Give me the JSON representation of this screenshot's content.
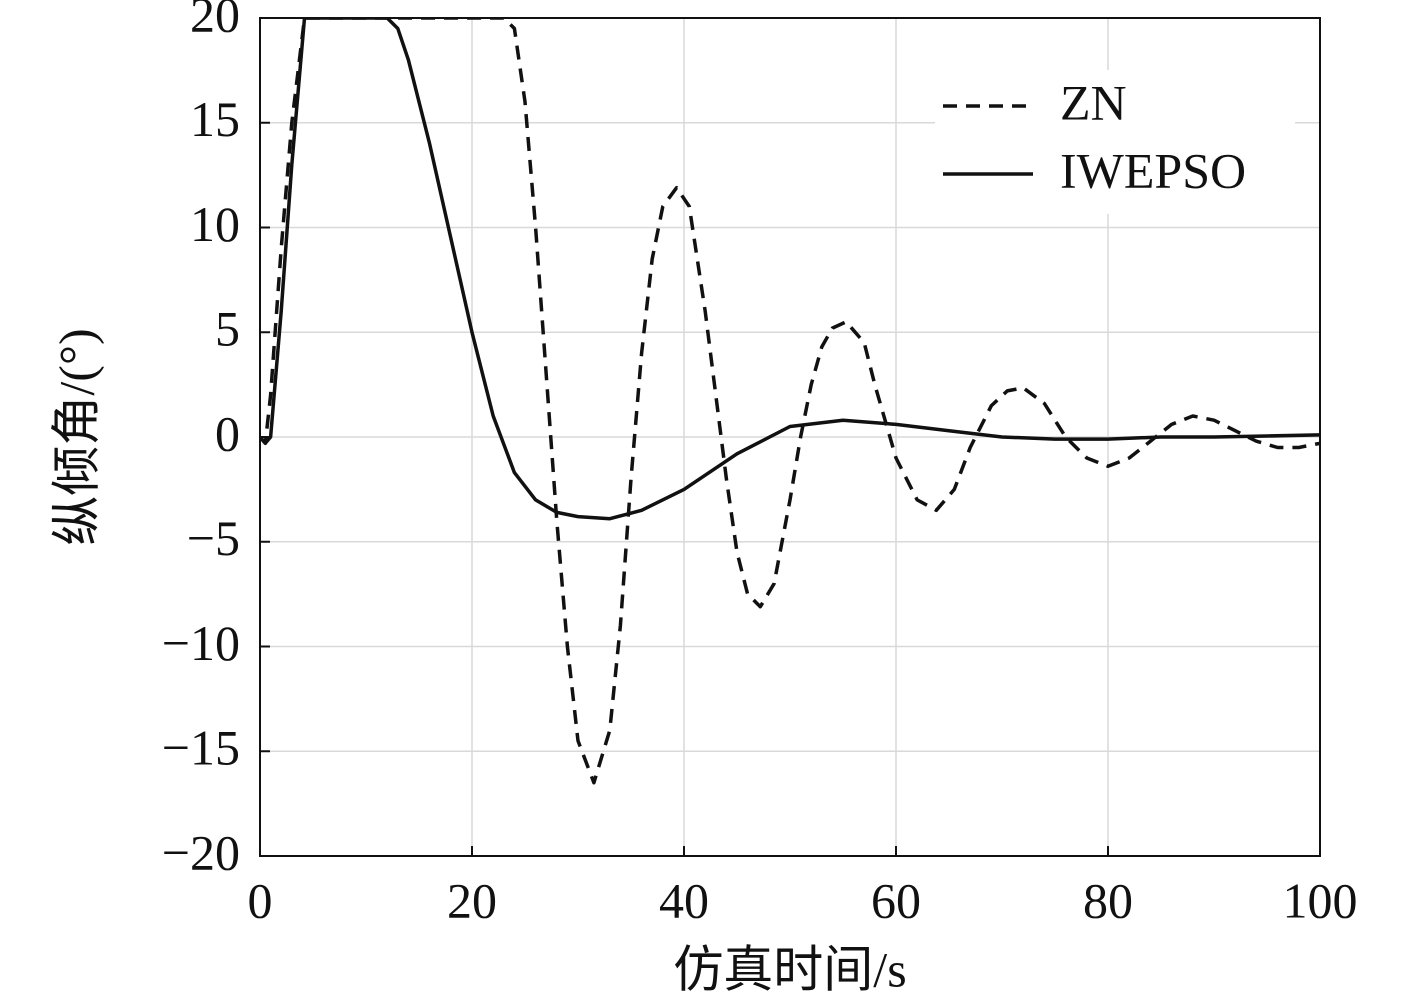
{
  "chart_data": {
    "type": "line",
    "x_label": "仿真时间/s",
    "y_label": "纵倾角/(°)",
    "xlim": [
      0,
      100
    ],
    "xticks": [
      0,
      20,
      40,
      60,
      80,
      100
    ],
    "ylim": [
      -20,
      20
    ],
    "yticks": [
      {
        "value": -20,
        "label": "−20"
      },
      {
        "value": -15,
        "label": "−15"
      },
      {
        "value": -10,
        "label": "−10"
      },
      {
        "value": -5,
        "label": "−5"
      },
      0,
      5,
      10,
      15,
      20
    ],
    "grid": true,
    "legend": "upper right",
    "series": [
      {
        "name": "ZN",
        "color": "#111111",
        "dashed": true,
        "x": [
          0,
          0.5,
          1,
          2,
          3,
          4.2,
          23,
          24,
          25,
          26,
          27,
          28,
          29,
          30,
          31.5,
          33,
          34,
          35,
          36,
          37,
          38,
          39.3,
          40.5,
          42,
          43,
          44,
          45,
          46,
          47.2,
          48.5,
          50,
          51,
          52,
          53,
          54,
          55.3,
          57,
          58,
          60,
          62,
          63.8,
          65.5,
          67,
          69,
          70.5,
          72,
          74,
          76,
          78,
          80,
          82,
          84,
          86,
          88,
          90,
          92,
          94,
          96,
          98,
          100
        ],
        "values": [
          0,
          -0.3,
          2,
          9,
          15,
          20,
          20,
          19.5,
          16,
          10,
          3,
          -4,
          -10,
          -14.5,
          -16.5,
          -14,
          -9,
          -2,
          4,
          8.5,
          11,
          11.9,
          11,
          6,
          2,
          -2,
          -5.5,
          -7.5,
          -8.1,
          -7,
          -3,
          0,
          2.5,
          4.3,
          5.2,
          5.5,
          4.5,
          2.5,
          -1,
          -3,
          -3.5,
          -2.5,
          -0.5,
          1.5,
          2.2,
          2.35,
          1.6,
          0,
          -1,
          -1.4,
          -1,
          -0.2,
          0.6,
          1,
          0.8,
          0.3,
          -0.2,
          -0.5,
          -0.5,
          -0.3
        ]
      },
      {
        "name": "IWEPSO",
        "color": "#111111",
        "dashed": false,
        "x": [
          0,
          0.5,
          1,
          2,
          3,
          4.2,
          12,
          13,
          14,
          16,
          18,
          20,
          22,
          24,
          26,
          28,
          30,
          33,
          36,
          40,
          45,
          50,
          55,
          60,
          65,
          70,
          75,
          80,
          85,
          90,
          95,
          100
        ],
        "values": [
          0,
          -0.3,
          0,
          6,
          13,
          20,
          20,
          19.5,
          18,
          14,
          9.5,
          5,
          1,
          -1.7,
          -3,
          -3.6,
          -3.8,
          -3.9,
          -3.5,
          -2.5,
          -0.8,
          0.5,
          0.8,
          0.6,
          0.3,
          0,
          -0.1,
          -0.1,
          0,
          0,
          0.05,
          0.1
        ]
      }
    ]
  }
}
